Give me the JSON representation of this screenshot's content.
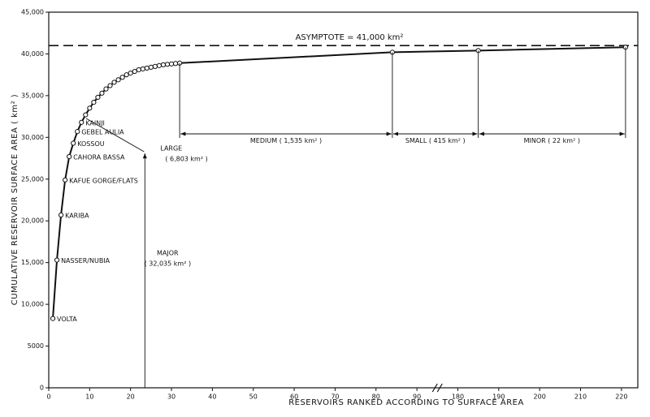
{
  "chart_data": {
    "type": "line",
    "y_label": "CUMULATIVE RESERVOIR SURFACE AREA ( km² )",
    "x_label": "RESERVOIRS RANKED ACCORDING TO SURFACE AREA",
    "color": "#111111",
    "xlim": [
      0,
      224
    ],
    "xticks": [
      0,
      10,
      20,
      30,
      40,
      50,
      60,
      70,
      80,
      90,
      180,
      190,
      200,
      210,
      220
    ],
    "ylim": [
      0,
      45000
    ],
    "yticks": [
      0,
      5000,
      {
        "value": 10000,
        "label": "10,000"
      },
      {
        "value": 15000,
        "label": "15,000"
      },
      {
        "value": 20000,
        "label": "20,000"
      },
      {
        "value": 25000,
        "label": "25,000"
      },
      {
        "value": 30000,
        "label": "30,000"
      },
      {
        "value": 35000,
        "label": "35,000"
      },
      {
        "value": 40000,
        "label": "40,000"
      },
      {
        "value": 45000,
        "label": "45,000"
      }
    ],
    "series": [
      {
        "x": [
          1,
          2,
          3,
          4,
          5,
          6,
          7,
          8,
          9,
          10,
          11,
          12,
          13,
          14,
          15,
          16,
          17,
          18,
          19,
          20,
          21,
          22,
          23,
          24,
          25,
          26,
          27,
          28,
          29,
          30,
          31,
          32,
          84,
          185,
          221
        ],
        "values": [
          8300,
          15300,
          20700,
          24900,
          27700,
          29300,
          30700,
          31800,
          32700,
          33500,
          34200,
          34800,
          35300,
          35800,
          36200,
          36600,
          36900,
          37200,
          37500,
          37700,
          37900,
          38100,
          38200,
          38300,
          38400,
          38500,
          38600,
          38700,
          38750,
          38800,
          38850,
          38900,
          40200,
          40400,
          40800
        ],
        "point_labels": [
          "VOLTA",
          "NASSER/NUBIA",
          "KARIBA",
          "KAFUE GORGE/FLATS",
          "CAHORA BASSA",
          "KOSSOU",
          "GEBEL AULIA",
          "KAINJI",
          null,
          null,
          null,
          null,
          null,
          null,
          null,
          null,
          null,
          null,
          null,
          null,
          null,
          null,
          null,
          null,
          null,
          null,
          null,
          null,
          null,
          null,
          null,
          null,
          null,
          null,
          null
        ]
      }
    ],
    "asymptote": {
      "value": 41000,
      "label": "ASYMPTOTE = 41,000 km²"
    },
    "groups": [
      {
        "name": "MAJOR",
        "area": "( 32,035 km² )",
        "last_rank": 8
      },
      {
        "name": "LARGE",
        "area": "( 6,803 km² )",
        "last_rank": 32
      },
      {
        "name": "MEDIUM",
        "area": "( 1,535 km² )",
        "last_rank": 84
      },
      {
        "name": "SMALL",
        "area": "( 415 km² )",
        "last_rank": 185
      },
      {
        "name": "MINOR",
        "area": "( 22 km² )",
        "last_rank": 221
      }
    ]
  }
}
